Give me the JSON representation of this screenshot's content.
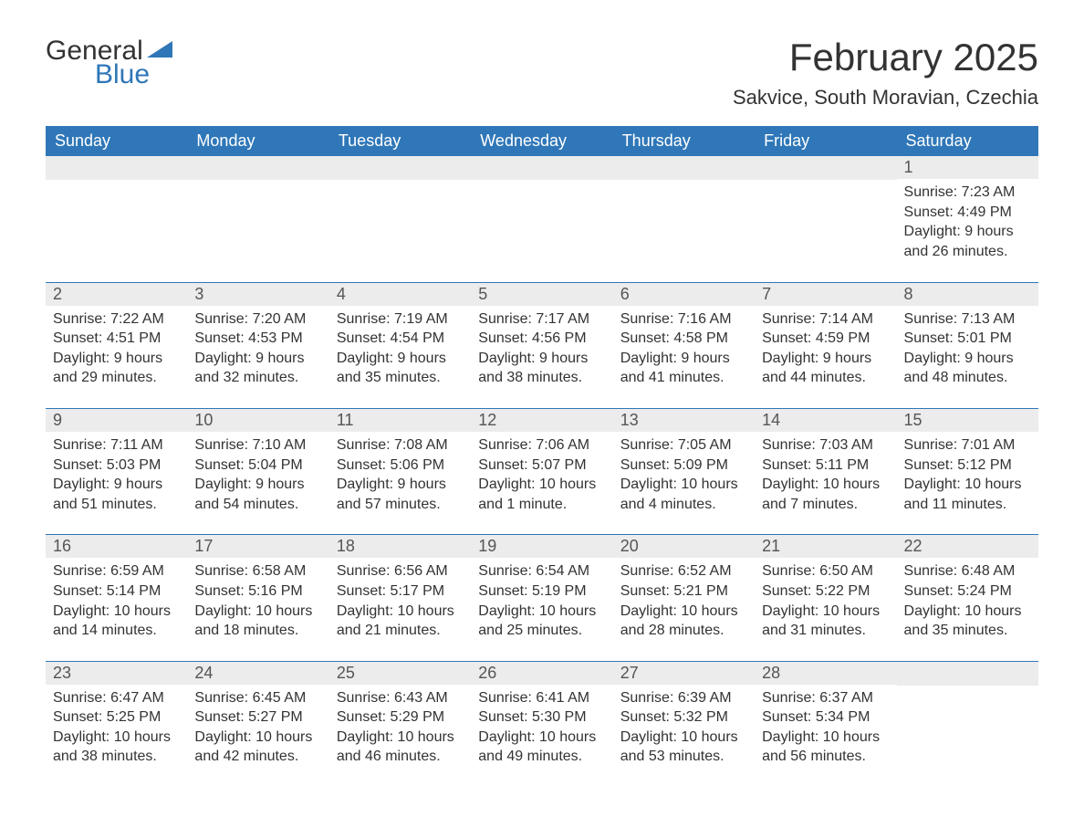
{
  "logo": {
    "word1": "General",
    "word2": "Blue",
    "tri_color": "#2f77b8"
  },
  "colors": {
    "header_bg": "#2f77b8",
    "header_text": "#ffffff",
    "daynum_bg": "#ececec",
    "daynum_text": "#555555",
    "body_text": "#333333",
    "week_border": "#2f77b8",
    "page_bg": "#ffffff"
  },
  "title": "February 2025",
  "location": "Sakvice, South Moravian, Czechia",
  "dow": [
    "Sunday",
    "Monday",
    "Tuesday",
    "Wednesday",
    "Thursday",
    "Friday",
    "Saturday"
  ],
  "weeks": [
    [
      {
        "n": "",
        "l1": "",
        "l2": "",
        "l3": "",
        "l4": ""
      },
      {
        "n": "",
        "l1": "",
        "l2": "",
        "l3": "",
        "l4": ""
      },
      {
        "n": "",
        "l1": "",
        "l2": "",
        "l3": "",
        "l4": ""
      },
      {
        "n": "",
        "l1": "",
        "l2": "",
        "l3": "",
        "l4": ""
      },
      {
        "n": "",
        "l1": "",
        "l2": "",
        "l3": "",
        "l4": ""
      },
      {
        "n": "",
        "l1": "",
        "l2": "",
        "l3": "",
        "l4": ""
      },
      {
        "n": "1",
        "l1": "Sunrise: 7:23 AM",
        "l2": "Sunset: 4:49 PM",
        "l3": "Daylight: 9 hours",
        "l4": "and 26 minutes."
      }
    ],
    [
      {
        "n": "2",
        "l1": "Sunrise: 7:22 AM",
        "l2": "Sunset: 4:51 PM",
        "l3": "Daylight: 9 hours",
        "l4": "and 29 minutes."
      },
      {
        "n": "3",
        "l1": "Sunrise: 7:20 AM",
        "l2": "Sunset: 4:53 PM",
        "l3": "Daylight: 9 hours",
        "l4": "and 32 minutes."
      },
      {
        "n": "4",
        "l1": "Sunrise: 7:19 AM",
        "l2": "Sunset: 4:54 PM",
        "l3": "Daylight: 9 hours",
        "l4": "and 35 minutes."
      },
      {
        "n": "5",
        "l1": "Sunrise: 7:17 AM",
        "l2": "Sunset: 4:56 PM",
        "l3": "Daylight: 9 hours",
        "l4": "and 38 minutes."
      },
      {
        "n": "6",
        "l1": "Sunrise: 7:16 AM",
        "l2": "Sunset: 4:58 PM",
        "l3": "Daylight: 9 hours",
        "l4": "and 41 minutes."
      },
      {
        "n": "7",
        "l1": "Sunrise: 7:14 AM",
        "l2": "Sunset: 4:59 PM",
        "l3": "Daylight: 9 hours",
        "l4": "and 44 minutes."
      },
      {
        "n": "8",
        "l1": "Sunrise: 7:13 AM",
        "l2": "Sunset: 5:01 PM",
        "l3": "Daylight: 9 hours",
        "l4": "and 48 minutes."
      }
    ],
    [
      {
        "n": "9",
        "l1": "Sunrise: 7:11 AM",
        "l2": "Sunset: 5:03 PM",
        "l3": "Daylight: 9 hours",
        "l4": "and 51 minutes."
      },
      {
        "n": "10",
        "l1": "Sunrise: 7:10 AM",
        "l2": "Sunset: 5:04 PM",
        "l3": "Daylight: 9 hours",
        "l4": "and 54 minutes."
      },
      {
        "n": "11",
        "l1": "Sunrise: 7:08 AM",
        "l2": "Sunset: 5:06 PM",
        "l3": "Daylight: 9 hours",
        "l4": "and 57 minutes."
      },
      {
        "n": "12",
        "l1": "Sunrise: 7:06 AM",
        "l2": "Sunset: 5:07 PM",
        "l3": "Daylight: 10 hours",
        "l4": "and 1 minute."
      },
      {
        "n": "13",
        "l1": "Sunrise: 7:05 AM",
        "l2": "Sunset: 5:09 PM",
        "l3": "Daylight: 10 hours",
        "l4": "and 4 minutes."
      },
      {
        "n": "14",
        "l1": "Sunrise: 7:03 AM",
        "l2": "Sunset: 5:11 PM",
        "l3": "Daylight: 10 hours",
        "l4": "and 7 minutes."
      },
      {
        "n": "15",
        "l1": "Sunrise: 7:01 AM",
        "l2": "Sunset: 5:12 PM",
        "l3": "Daylight: 10 hours",
        "l4": "and 11 minutes."
      }
    ],
    [
      {
        "n": "16",
        "l1": "Sunrise: 6:59 AM",
        "l2": "Sunset: 5:14 PM",
        "l3": "Daylight: 10 hours",
        "l4": "and 14 minutes."
      },
      {
        "n": "17",
        "l1": "Sunrise: 6:58 AM",
        "l2": "Sunset: 5:16 PM",
        "l3": "Daylight: 10 hours",
        "l4": "and 18 minutes."
      },
      {
        "n": "18",
        "l1": "Sunrise: 6:56 AM",
        "l2": "Sunset: 5:17 PM",
        "l3": "Daylight: 10 hours",
        "l4": "and 21 minutes."
      },
      {
        "n": "19",
        "l1": "Sunrise: 6:54 AM",
        "l2": "Sunset: 5:19 PM",
        "l3": "Daylight: 10 hours",
        "l4": "and 25 minutes."
      },
      {
        "n": "20",
        "l1": "Sunrise: 6:52 AM",
        "l2": "Sunset: 5:21 PM",
        "l3": "Daylight: 10 hours",
        "l4": "and 28 minutes."
      },
      {
        "n": "21",
        "l1": "Sunrise: 6:50 AM",
        "l2": "Sunset: 5:22 PM",
        "l3": "Daylight: 10 hours",
        "l4": "and 31 minutes."
      },
      {
        "n": "22",
        "l1": "Sunrise: 6:48 AM",
        "l2": "Sunset: 5:24 PM",
        "l3": "Daylight: 10 hours",
        "l4": "and 35 minutes."
      }
    ],
    [
      {
        "n": "23",
        "l1": "Sunrise: 6:47 AM",
        "l2": "Sunset: 5:25 PM",
        "l3": "Daylight: 10 hours",
        "l4": "and 38 minutes."
      },
      {
        "n": "24",
        "l1": "Sunrise: 6:45 AM",
        "l2": "Sunset: 5:27 PM",
        "l3": "Daylight: 10 hours",
        "l4": "and 42 minutes."
      },
      {
        "n": "25",
        "l1": "Sunrise: 6:43 AM",
        "l2": "Sunset: 5:29 PM",
        "l3": "Daylight: 10 hours",
        "l4": "and 46 minutes."
      },
      {
        "n": "26",
        "l1": "Sunrise: 6:41 AM",
        "l2": "Sunset: 5:30 PM",
        "l3": "Daylight: 10 hours",
        "l4": "and 49 minutes."
      },
      {
        "n": "27",
        "l1": "Sunrise: 6:39 AM",
        "l2": "Sunset: 5:32 PM",
        "l3": "Daylight: 10 hours",
        "l4": "and 53 minutes."
      },
      {
        "n": "28",
        "l1": "Sunrise: 6:37 AM",
        "l2": "Sunset: 5:34 PM",
        "l3": "Daylight: 10 hours",
        "l4": "and 56 minutes."
      },
      {
        "n": "",
        "l1": "",
        "l2": "",
        "l3": "",
        "l4": ""
      }
    ]
  ]
}
